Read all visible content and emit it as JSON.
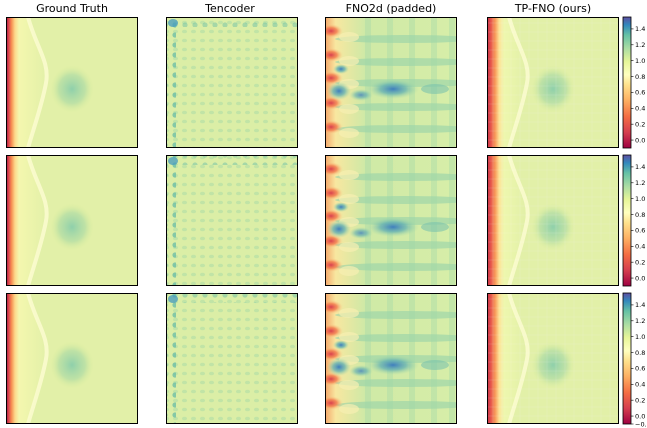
{
  "column_titles": [
    "Ground Truth",
    "Tencoder",
    "FNO2d (padded)",
    "TP-FNO (ours)"
  ],
  "colorbar": {
    "colormap": "Spectral",
    "range": [
      -0.1,
      1.55
    ],
    "ticks": [
      [
        "1.4",
        "1.2",
        "1.0",
        "0.8",
        "0.6",
        "0.4",
        "0.2",
        "0.0"
      ],
      [
        "1.4",
        "1.2",
        "1.0",
        "0.8",
        "0.6",
        "0.4",
        "0.2",
        "0.0"
      ],
      [
        "1.4",
        "1.2",
        "1.0",
        "0.8",
        "0.6",
        "0.4",
        "0.2",
        "0.0",
        "−0."
      ]
    ]
  },
  "colors": {
    "red": "#9e0142",
    "orange": "#f46d43",
    "yellow": "#ffffbf",
    "green": "#abdda4",
    "teal": "#66c2a5",
    "blue": "#3288bd",
    "navy": "#5e4fa2"
  }
}
